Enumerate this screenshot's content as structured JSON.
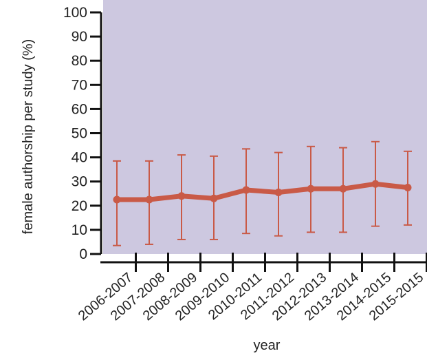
{
  "chart_data": {
    "type": "line",
    "xlabel": "year",
    "ylabel": "female authorship per study (%)",
    "ylim": [
      0,
      100
    ],
    "yticks": [
      0,
      10,
      20,
      30,
      40,
      50,
      60,
      70,
      80,
      90,
      100
    ],
    "categories": [
      "2006-2007",
      "2007-2008",
      "2008-2009",
      "2009-2010",
      "2010-2011",
      "2011-2012",
      "2012-2013",
      "2013-2014",
      "2014-2015",
      "2015-2015"
    ],
    "series": [
      {
        "values": [
          22.5,
          22.5,
          24,
          23,
          26.5,
          25.5,
          27,
          27,
          29,
          27.5
        ],
        "error_low": [
          3.5,
          4,
          6,
          6,
          8.5,
          7.5,
          9,
          9,
          11.5,
          12
        ],
        "error_high": [
          38.5,
          38.5,
          41,
          40.5,
          43.5,
          42,
          44.5,
          44,
          46.5,
          42.5
        ]
      }
    ],
    "grid": false,
    "colors": {
      "plot_background": "#cdc8e0",
      "line": "#c95a47",
      "axis": "#111111"
    }
  }
}
